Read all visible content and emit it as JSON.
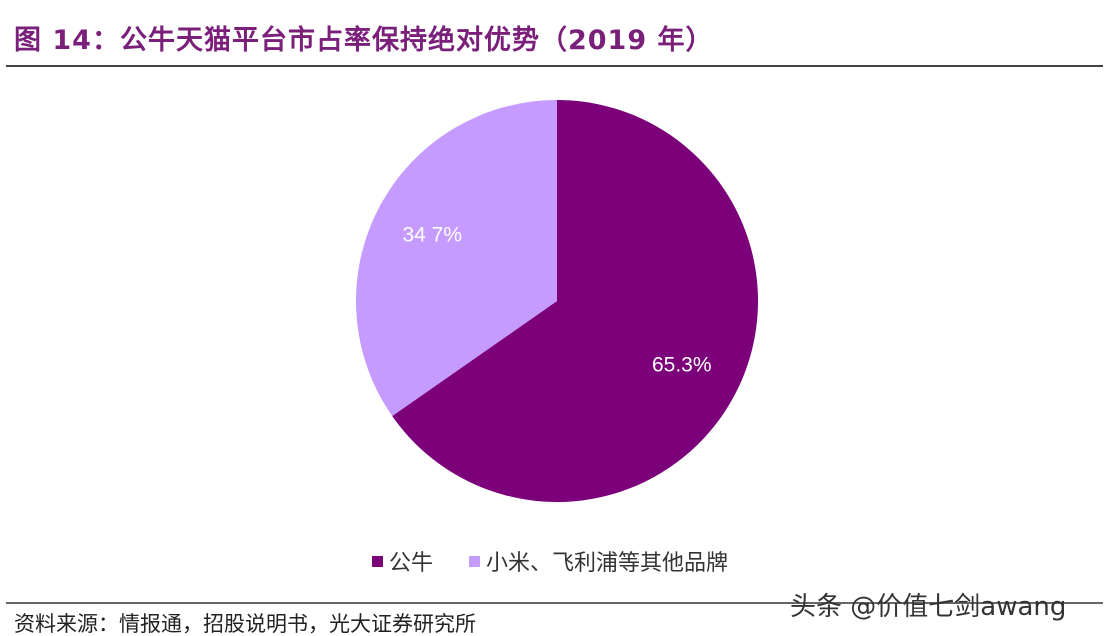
{
  "figure": {
    "title": "图 14：公牛天猫平台市占率保持绝对优势（2019 年）",
    "source": "资料来源：情报通，招股说明书，光大证券研究所",
    "watermark": "头条 @价值七剑awang"
  },
  "colors": {
    "title": "#7a1f7a",
    "series_main": "#7b0079",
    "series_other": "#c59bff"
  },
  "chart_data": {
    "type": "pie",
    "title": "",
    "slices": [
      {
        "name": "公牛",
        "value": 65.3,
        "label": "65.3%",
        "color": "#7b0079"
      },
      {
        "name": "小米、飞利浦等其他品牌",
        "value": 34.7,
        "label": "34 7%",
        "color": "#c59bff"
      }
    ],
    "start": "12 o'clock",
    "direction": "clockwise",
    "legend_placement": "bottom"
  }
}
